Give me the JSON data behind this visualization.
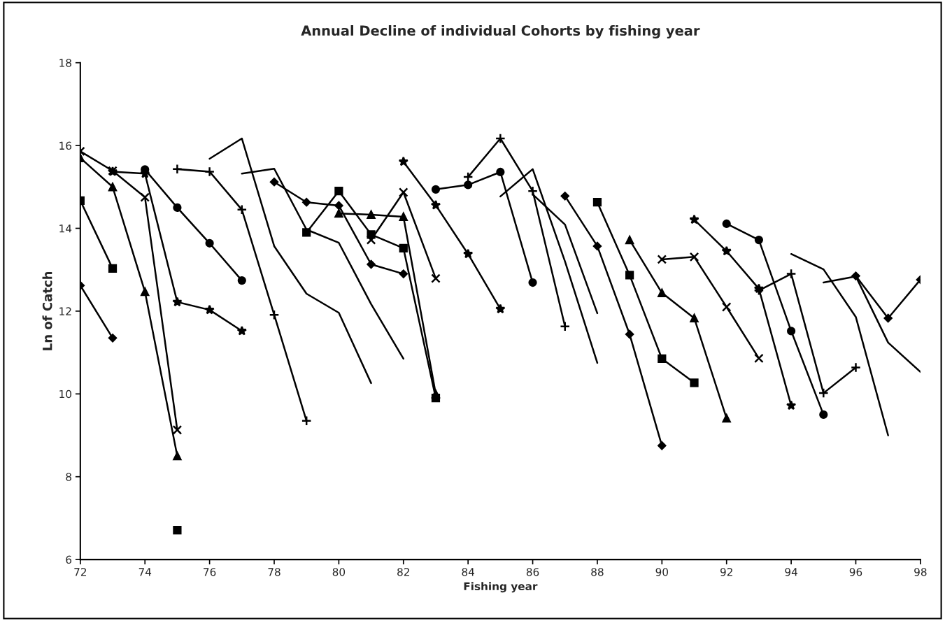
{
  "chart_data": {
    "type": "line",
    "title": "Annual Decline of individual Cohorts by fishing year",
    "xlabel": "Fishing year",
    "ylabel": "Ln of Catch",
    "xlim": [
      72,
      98
    ],
    "xticks": [
      72,
      74,
      76,
      78,
      80,
      82,
      84,
      86,
      88,
      90,
      92,
      94,
      96,
      98
    ],
    "ylim": [
      6,
      18
    ],
    "yticks": [
      6,
      8,
      10,
      12,
      14,
      16,
      18
    ],
    "grid": false,
    "legend": false,
    "series": [
      {
        "color": "#000000",
        "marker": "diamond",
        "x": [
          72,
          73
        ],
        "values": [
          12.62,
          11.35
        ]
      },
      {
        "color": "#000000",
        "marker": "square",
        "x": [
          72,
          73
        ],
        "values": [
          14.67,
          13.03
        ]
      },
      {
        "color": "#000000",
        "marker": "square",
        "x": [
          75
        ],
        "values": [
          6.71
        ]
      },
      {
        "color": "#000000",
        "marker": "triangle",
        "x": [
          72,
          73,
          74,
          75
        ],
        "values": [
          15.7,
          15.0,
          12.47,
          8.5
        ]
      },
      {
        "color": "#000000",
        "marker": "cross",
        "x": [
          72,
          73,
          74,
          75
        ],
        "values": [
          15.86,
          15.39,
          14.75,
          9.13
        ]
      },
      {
        "color": "#000000",
        "marker": "star",
        "x": [
          73,
          74,
          75,
          76,
          77
        ],
        "values": [
          15.37,
          15.32,
          12.22,
          12.03,
          11.52
        ]
      },
      {
        "color": "#000000",
        "marker": "circle",
        "x": [
          74,
          75,
          76,
          77
        ],
        "values": [
          15.42,
          14.5,
          13.64,
          12.74
        ]
      },
      {
        "color": "#000000",
        "marker": "plus",
        "x": [
          75,
          76,
          77,
          78,
          79
        ],
        "values": [
          15.43,
          15.37,
          14.45,
          11.91,
          9.35
        ]
      },
      {
        "color": "#000000",
        "marker": "none",
        "x": [
          76,
          77,
          78,
          79,
          80,
          81
        ],
        "values": [
          15.68,
          16.17,
          13.57,
          12.42,
          11.96,
          10.26
        ]
      },
      {
        "color": "#000000",
        "marker": "none",
        "x": [
          77,
          78,
          79,
          80,
          81,
          82
        ],
        "values": [
          15.32,
          15.44,
          13.97,
          13.65,
          12.17,
          10.85
        ]
      },
      {
        "color": "#000000",
        "marker": "diamond",
        "x": [
          78,
          79,
          80,
          81,
          82
        ],
        "values": [
          15.12,
          14.63,
          14.55,
          13.13,
          12.9
        ]
      },
      {
        "color": "#000000",
        "marker": "square",
        "x": [
          79,
          80,
          81,
          82,
          83
        ],
        "values": [
          13.9,
          14.9,
          13.85,
          13.52,
          9.9
        ]
      },
      {
        "color": "#000000",
        "marker": "triangle",
        "x": [
          80,
          81,
          82,
          83
        ],
        "values": [
          14.36,
          14.33,
          14.28,
          10.0
        ]
      },
      {
        "color": "#000000",
        "marker": "cross",
        "x": [
          81,
          82,
          83
        ],
        "values": [
          13.72,
          14.87,
          12.79
        ]
      },
      {
        "color": "#000000",
        "marker": "star",
        "x": [
          82,
          83,
          84,
          85
        ],
        "values": [
          15.61,
          14.56,
          13.38,
          12.05
        ]
      },
      {
        "color": "#000000",
        "marker": "circle",
        "x": [
          83,
          84,
          85,
          86
        ],
        "values": [
          14.94,
          15.05,
          15.36,
          12.69
        ]
      },
      {
        "color": "#000000",
        "marker": "plus",
        "x": [
          84,
          85,
          86,
          87
        ],
        "values": [
          15.24,
          16.17,
          14.9,
          11.63
        ]
      },
      {
        "color": "#000000",
        "marker": "none",
        "x": [
          85,
          86,
          87,
          88
        ],
        "values": [
          14.77,
          15.43,
          13.2,
          10.75
        ]
      },
      {
        "color": "#000000",
        "marker": "none",
        "x": [
          86,
          87,
          88
        ],
        "values": [
          14.82,
          14.09,
          11.95
        ]
      },
      {
        "color": "#000000",
        "marker": "diamond",
        "x": [
          87,
          88,
          89,
          90
        ],
        "values": [
          14.78,
          13.57,
          11.44,
          8.75
        ]
      },
      {
        "color": "#000000",
        "marker": "square",
        "x": [
          88,
          89,
          90,
          91
        ],
        "values": [
          14.63,
          12.87,
          10.85,
          10.27
        ]
      },
      {
        "color": "#000000",
        "marker": "triangle",
        "x": [
          89,
          90,
          91,
          92
        ],
        "values": [
          13.72,
          12.44,
          11.83,
          9.41
        ]
      },
      {
        "color": "#000000",
        "marker": "cross",
        "x": [
          90,
          91,
          92,
          93
        ],
        "values": [
          13.25,
          13.31,
          12.1,
          10.86
        ]
      },
      {
        "color": "#000000",
        "marker": "star",
        "x": [
          91,
          92,
          93,
          94
        ],
        "values": [
          14.21,
          13.45,
          12.54,
          9.72
        ]
      },
      {
        "color": "#000000",
        "marker": "circle",
        "x": [
          92,
          93,
          94,
          95
        ],
        "values": [
          14.11,
          13.72,
          11.52,
          9.5
        ]
      },
      {
        "color": "#000000",
        "marker": "plus",
        "x": [
          93,
          94,
          95,
          96
        ],
        "values": [
          12.5,
          12.9,
          10.02,
          10.64
        ]
      },
      {
        "color": "#000000",
        "marker": "none",
        "x": [
          94,
          95,
          96,
          97
        ],
        "values": [
          13.38,
          13.01,
          11.86,
          9.0
        ]
      },
      {
        "color": "#000000",
        "marker": "none",
        "x": [
          95,
          96,
          97,
          98
        ],
        "values": [
          12.69,
          12.84,
          11.24,
          10.53
        ]
      },
      {
        "color": "#000000",
        "marker": "diamond",
        "x": [
          96,
          97,
          98
        ],
        "values": [
          12.85,
          11.83,
          12.76
        ]
      }
    ]
  }
}
